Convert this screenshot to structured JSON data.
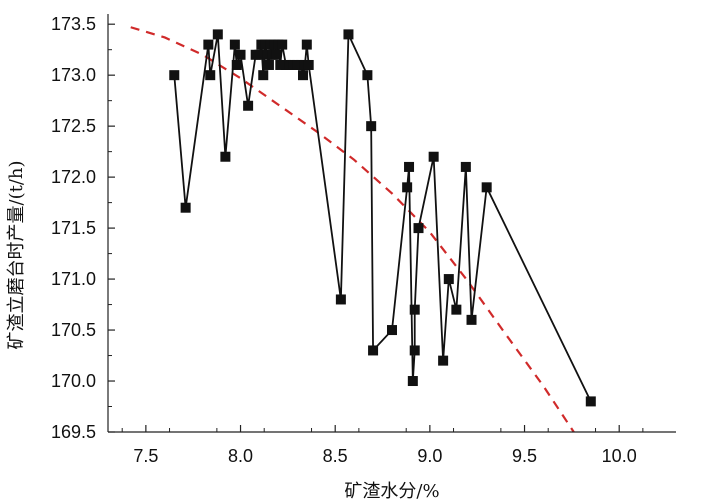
{
  "chart_data": {
    "type": "scatter",
    "title": "",
    "xlabel": "矿渣水分/%",
    "ylabel": "矿渣立磨台时产量/(t/h)",
    "xlim": [
      7.3,
      10.3
    ],
    "ylim": [
      169.5,
      173.6
    ],
    "x_ticks": [
      7.5,
      8.0,
      8.5,
      9.0,
      9.5,
      10.0
    ],
    "x_tick_labels": [
      "7.5",
      "8.0",
      "8.5",
      "9.0",
      "9.5",
      "10.0"
    ],
    "y_ticks": [
      169.5,
      170.0,
      170.5,
      171.0,
      171.5,
      172.0,
      172.5,
      173.0,
      173.5
    ],
    "y_tick_labels": [
      "169.5",
      "170.0",
      "170.5",
      "171.0",
      "171.5",
      "172.0",
      "172.5",
      "173.0",
      "173.5"
    ],
    "grid": false,
    "legend": "none",
    "series": [
      {
        "type": "line-with-square-markers",
        "color": "#111111",
        "points": [
          [
            7.65,
            173.0
          ],
          [
            7.71,
            171.7
          ],
          [
            7.83,
            173.3
          ],
          [
            7.84,
            173.0
          ],
          [
            7.88,
            173.4
          ],
          [
            7.92,
            172.2
          ],
          [
            7.97,
            173.3
          ],
          [
            7.98,
            173.1
          ],
          [
            8.0,
            173.2
          ],
          [
            8.04,
            172.7
          ],
          [
            8.08,
            173.2
          ],
          [
            8.1,
            173.2
          ],
          [
            8.11,
            173.3
          ],
          [
            8.12,
            173.0
          ],
          [
            8.13,
            173.3
          ],
          [
            8.14,
            173.2
          ],
          [
            8.15,
            173.1
          ],
          [
            8.16,
            173.3
          ],
          [
            8.17,
            173.2
          ],
          [
            8.18,
            173.3
          ],
          [
            8.19,
            173.2
          ],
          [
            8.2,
            173.3
          ],
          [
            8.21,
            173.1
          ],
          [
            8.22,
            173.3
          ],
          [
            8.24,
            173.1
          ],
          [
            8.26,
            173.1
          ],
          [
            8.28,
            173.1
          ],
          [
            8.3,
            173.1
          ],
          [
            8.32,
            173.1
          ],
          [
            8.33,
            173.0
          ],
          [
            8.34,
            173.1
          ],
          [
            8.35,
            173.3
          ],
          [
            8.36,
            173.1
          ],
          [
            8.53,
            170.8
          ],
          [
            8.57,
            173.4
          ],
          [
            8.67,
            173.0
          ],
          [
            8.69,
            172.5
          ],
          [
            8.7,
            170.3
          ],
          [
            8.8,
            170.5
          ],
          [
            8.88,
            171.9
          ],
          [
            8.89,
            172.1
          ],
          [
            8.91,
            170.0
          ],
          [
            8.92,
            170.3
          ],
          [
            8.92,
            170.7
          ],
          [
            8.94,
            171.5
          ],
          [
            9.02,
            172.2
          ],
          [
            9.07,
            170.2
          ],
          [
            9.1,
            171.0
          ],
          [
            9.14,
            170.7
          ],
          [
            9.19,
            172.1
          ],
          [
            9.22,
            170.6
          ],
          [
            9.3,
            171.9
          ],
          [
            9.85,
            169.8
          ]
        ]
      },
      {
        "type": "dashed-trend-curve",
        "color": "#d02a2a",
        "points": [
          [
            7.42,
            173.47
          ],
          [
            7.6,
            173.37
          ],
          [
            7.8,
            173.2
          ],
          [
            8.0,
            172.97
          ],
          [
            8.2,
            172.71
          ],
          [
            8.4,
            172.45
          ],
          [
            8.6,
            172.17
          ],
          [
            8.8,
            171.84
          ],
          [
            9.0,
            171.46
          ],
          [
            9.2,
            170.98
          ],
          [
            9.4,
            170.46
          ],
          [
            9.6,
            169.95
          ],
          [
            9.76,
            169.5
          ]
        ]
      }
    ]
  }
}
